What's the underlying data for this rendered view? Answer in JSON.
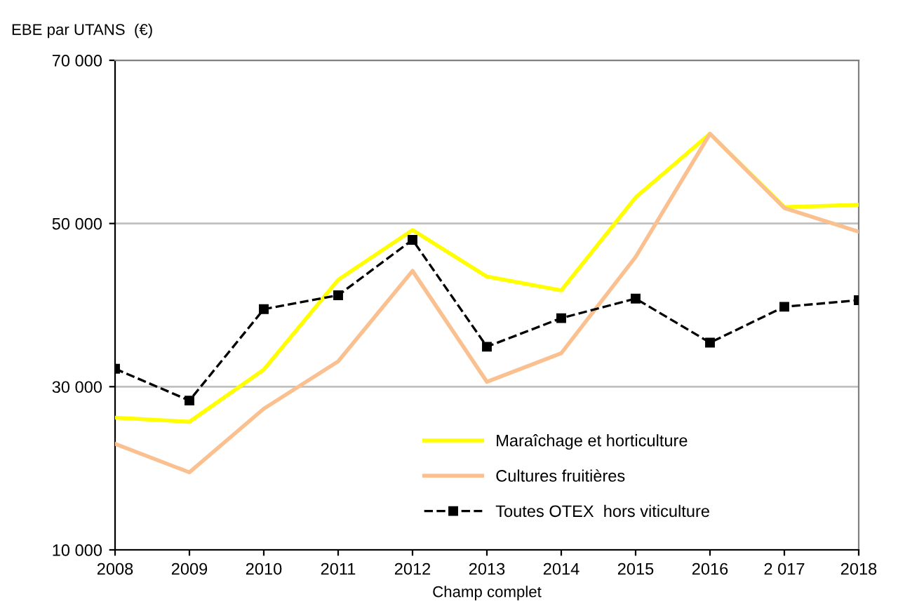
{
  "chart_data": {
    "type": "line",
    "ylabel": "EBE par UTANS  (€)",
    "xlabel": "Champ complet",
    "categories": [
      "2008",
      "2009",
      "2010",
      "2011",
      "2012",
      "2013",
      "2014",
      "2015",
      "2016",
      "2 017",
      "2018"
    ],
    "series": [
      {
        "name": "Maraîchage et horticulture",
        "color": "#ffff00",
        "line_style": "solid",
        "marker": "none",
        "values": [
          26200,
          25700,
          32100,
          43100,
          49200,
          43500,
          41800,
          53200,
          61000,
          52000,
          52300
        ]
      },
      {
        "name": "Cultures fruitières",
        "color": "#fac090",
        "line_style": "solid",
        "marker": "none",
        "values": [
          23000,
          19500,
          27300,
          33100,
          44200,
          30600,
          34100,
          45900,
          61000,
          51900,
          49000
        ]
      },
      {
        "name": "Toutes OTEX  hors viticulture",
        "color": "#000000",
        "line_style": "dashed",
        "marker": "square",
        "values": [
          32200,
          28300,
          39500,
          41200,
          48000,
          34900,
          38400,
          40800,
          35400,
          39800,
          40600
        ]
      }
    ],
    "ylim": [
      10000,
      70000
    ],
    "yticks": [
      {
        "value": 10000,
        "label": "10 000"
      },
      {
        "value": 30000,
        "label": "30 000"
      },
      {
        "value": 50000,
        "label": "50 000"
      },
      {
        "value": 70000,
        "label": "70 000"
      }
    ],
    "grid": "y",
    "legend": "bottom right"
  }
}
